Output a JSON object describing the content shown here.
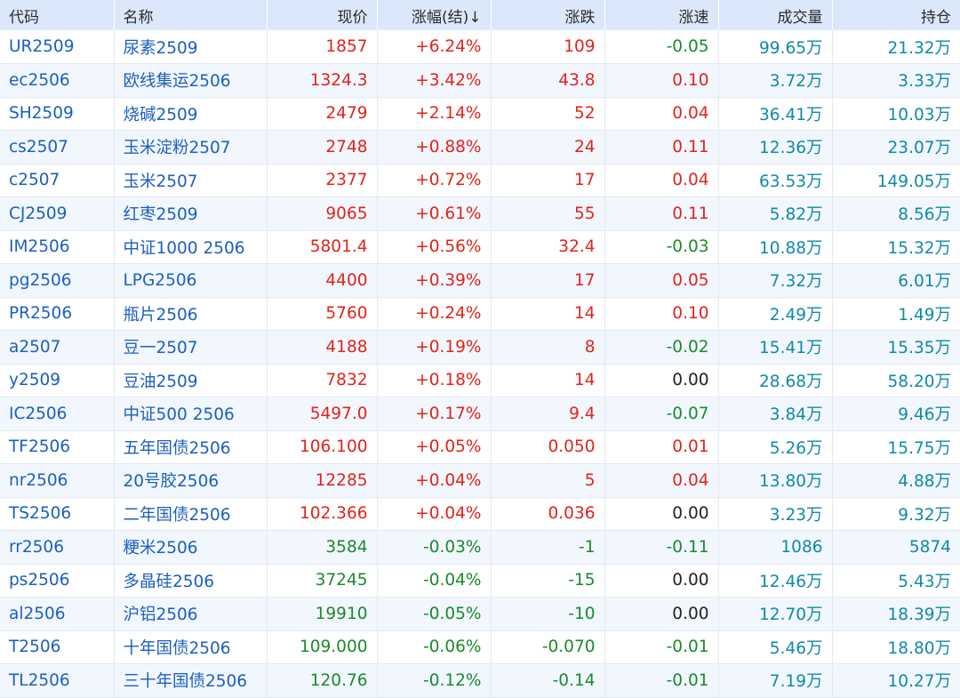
{
  "headers": {
    "code": "代码",
    "name": "名称",
    "price": "现价",
    "pct": "涨幅(结)↓",
    "change": "涨跌",
    "speed": "涨速",
    "volume": "成交量",
    "oi": "持仓"
  },
  "colors": {
    "up": "#e2231a",
    "down": "#1b8a2c",
    "flat": "#222222",
    "link": "#1c5fbf",
    "teal": "#0e8aa6",
    "header_bg": "#dbe8fb",
    "row_alt_bg": "#f2f7fe"
  },
  "rows": [
    {
      "code": "UR2509",
      "name": "尿素2509",
      "price": "1857",
      "pct": "+6.24%",
      "change": "109",
      "speed": "-0.05",
      "volume": "99.65万",
      "oi": "21.32万",
      "dir": "up",
      "speed_dir": "down"
    },
    {
      "code": "ec2506",
      "name": "欧线集运2506",
      "price": "1324.3",
      "pct": "+3.42%",
      "change": "43.8",
      "speed": "0.10",
      "volume": "3.72万",
      "oi": "3.33万",
      "dir": "up",
      "speed_dir": "up"
    },
    {
      "code": "SH2509",
      "name": "烧碱2509",
      "price": "2479",
      "pct": "+2.14%",
      "change": "52",
      "speed": "0.04",
      "volume": "36.41万",
      "oi": "10.03万",
      "dir": "up",
      "speed_dir": "up"
    },
    {
      "code": "cs2507",
      "name": "玉米淀粉2507",
      "price": "2748",
      "pct": "+0.88%",
      "change": "24",
      "speed": "0.11",
      "volume": "12.36万",
      "oi": "23.07万",
      "dir": "up",
      "speed_dir": "up"
    },
    {
      "code": "c2507",
      "name": "玉米2507",
      "price": "2377",
      "pct": "+0.72%",
      "change": "17",
      "speed": "0.04",
      "volume": "63.53万",
      "oi": "149.05万",
      "dir": "up",
      "speed_dir": "up"
    },
    {
      "code": "CJ2509",
      "name": "红枣2509",
      "price": "9065",
      "pct": "+0.61%",
      "change": "55",
      "speed": "0.11",
      "volume": "5.82万",
      "oi": "8.56万",
      "dir": "up",
      "speed_dir": "up"
    },
    {
      "code": "IM2506",
      "name": "中证1000 2506",
      "price": "5801.4",
      "pct": "+0.56%",
      "change": "32.4",
      "speed": "-0.03",
      "volume": "10.88万",
      "oi": "15.32万",
      "dir": "up",
      "speed_dir": "down"
    },
    {
      "code": "pg2506",
      "name": "LPG2506",
      "price": "4400",
      "pct": "+0.39%",
      "change": "17",
      "speed": "0.05",
      "volume": "7.32万",
      "oi": "6.01万",
      "dir": "up",
      "speed_dir": "up"
    },
    {
      "code": "PR2506",
      "name": "瓶片2506",
      "price": "5760",
      "pct": "+0.24%",
      "change": "14",
      "speed": "0.10",
      "volume": "2.49万",
      "oi": "1.49万",
      "dir": "up",
      "speed_dir": "up"
    },
    {
      "code": "a2507",
      "name": "豆一2507",
      "price": "4188",
      "pct": "+0.19%",
      "change": "8",
      "speed": "-0.02",
      "volume": "15.41万",
      "oi": "15.35万",
      "dir": "up",
      "speed_dir": "down"
    },
    {
      "code": "y2509",
      "name": "豆油2509",
      "price": "7832",
      "pct": "+0.18%",
      "change": "14",
      "speed": "0.00",
      "volume": "28.68万",
      "oi": "58.20万",
      "dir": "up",
      "speed_dir": "flat"
    },
    {
      "code": "IC2506",
      "name": "中证500 2506",
      "price": "5497.0",
      "pct": "+0.17%",
      "change": "9.4",
      "speed": "-0.07",
      "volume": "3.84万",
      "oi": "9.46万",
      "dir": "up",
      "speed_dir": "down"
    },
    {
      "code": "TF2506",
      "name": "五年国债2506",
      "price": "106.100",
      "pct": "+0.05%",
      "change": "0.050",
      "speed": "0.01",
      "volume": "5.26万",
      "oi": "15.75万",
      "dir": "up",
      "speed_dir": "up"
    },
    {
      "code": "nr2506",
      "name": "20号胶2506",
      "price": "12285",
      "pct": "+0.04%",
      "change": "5",
      "speed": "0.04",
      "volume": "13.80万",
      "oi": "4.88万",
      "dir": "up",
      "speed_dir": "up"
    },
    {
      "code": "TS2506",
      "name": "二年国债2506",
      "price": "102.366",
      "pct": "+0.04%",
      "change": "0.036",
      "speed": "0.00",
      "volume": "3.23万",
      "oi": "9.32万",
      "dir": "up",
      "speed_dir": "flat"
    },
    {
      "code": "rr2506",
      "name": "粳米2506",
      "price": "3584",
      "pct": "-0.03%",
      "change": "-1",
      "speed": "-0.11",
      "volume": "1086",
      "oi": "5874",
      "dir": "down",
      "speed_dir": "down"
    },
    {
      "code": "ps2506",
      "name": "多晶硅2506",
      "price": "37245",
      "pct": "-0.04%",
      "change": "-15",
      "speed": "0.00",
      "volume": "12.46万",
      "oi": "5.43万",
      "dir": "down",
      "speed_dir": "flat"
    },
    {
      "code": "al2506",
      "name": "沪铝2506",
      "price": "19910",
      "pct": "-0.05%",
      "change": "-10",
      "speed": "0.00",
      "volume": "12.70万",
      "oi": "18.39万",
      "dir": "down",
      "speed_dir": "flat"
    },
    {
      "code": "T2506",
      "name": "十年国债2506",
      "price": "109.000",
      "pct": "-0.06%",
      "change": "-0.070",
      "speed": "-0.01",
      "volume": "5.46万",
      "oi": "18.80万",
      "dir": "down",
      "speed_dir": "down"
    },
    {
      "code": "TL2506",
      "name": "三十年国债2506",
      "price": "120.76",
      "pct": "-0.12%",
      "change": "-0.14",
      "speed": "-0.01",
      "volume": "7.19万",
      "oi": "10.27万",
      "dir": "down",
      "speed_dir": "down"
    }
  ]
}
